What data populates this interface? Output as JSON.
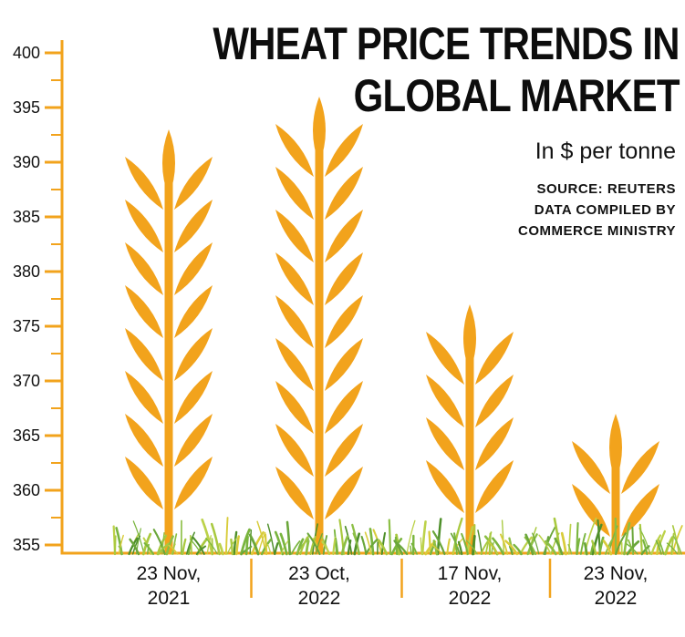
{
  "title": {
    "line1": "WHEAT PRICE TRENDS IN",
    "line2": "GLOBAL MARKET"
  },
  "subtitle": "In $ per tonne",
  "source_lines": [
    "SOURCE: REUTERS",
    "DATA COMPILED BY",
    "COMMERCE MINISTRY"
  ],
  "colors": {
    "wheat": "#F2A31C",
    "axis": "#F2A31C",
    "text": "#111111",
    "grass": [
      "#6aa63a",
      "#8cbf45",
      "#4e8f2a",
      "#a9c93f",
      "#79b53e",
      "#bcd24a",
      "#d8cc3a"
    ]
  },
  "chart_data": {
    "type": "bar",
    "bar_style": "wheat-stalk-pictogram",
    "title": "WHEAT PRICE TRENDS IN GLOBAL MARKET",
    "subtitle": "In $ per tonne",
    "source": "SOURCE: REUTERS DATA COMPILED BY COMMERCE MINISTRY",
    "categories": [
      "23 Nov, 2021",
      "23 Oct, 2022",
      "17 Nov, 2022",
      "23 Nov, 2022"
    ],
    "values": [
      393,
      396,
      377,
      367
    ],
    "ylabel": "$ per tonne",
    "ylim": [
      355,
      400
    ],
    "ytick_step": 5,
    "ytick_minor_step": 2.5,
    "grid": false,
    "legend": "none"
  }
}
